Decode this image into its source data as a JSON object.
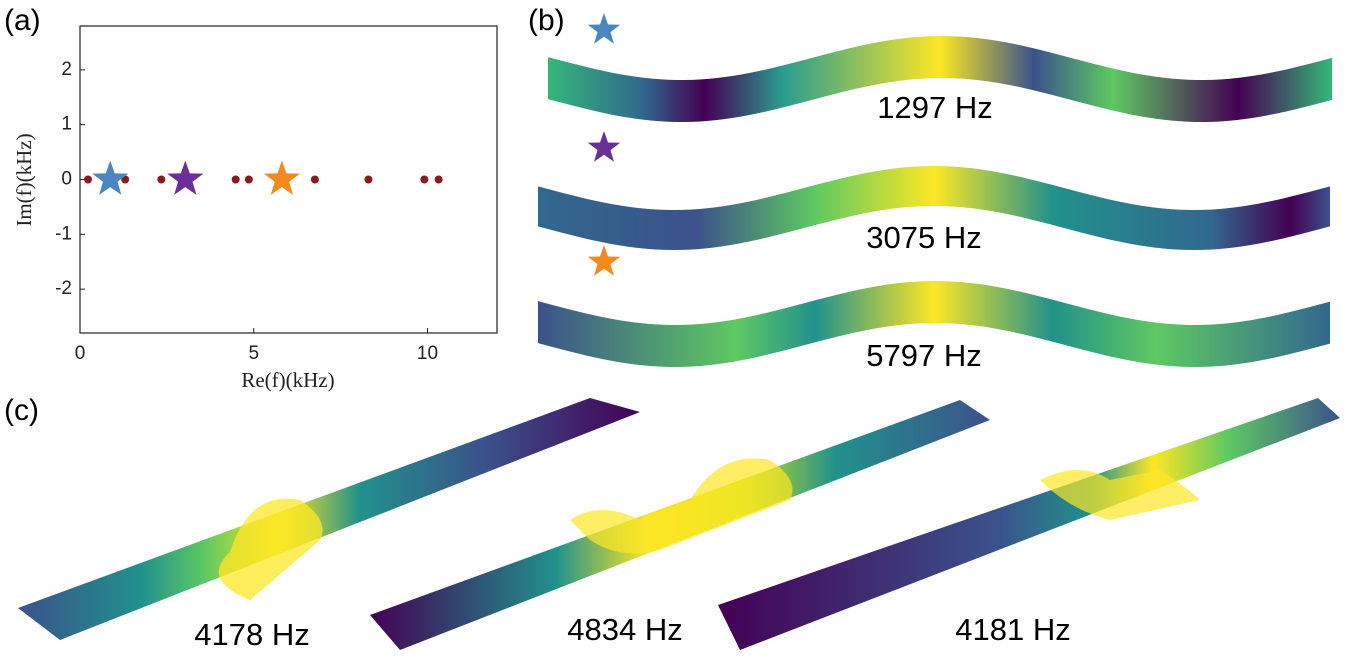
{
  "chart_data": {
    "type": "scatter",
    "xlabel": "Re(f)(kHz)",
    "ylabel": "Im(f)(kHz)",
    "xlim": [
      0,
      12
    ],
    "ylim": [
      -2.8,
      2.8
    ],
    "xticks": [
      0,
      5,
      10
    ],
    "yticks": [
      -2,
      -1,
      0,
      1,
      2
    ],
    "series": [
      {
        "color": "#8b1a1a",
        "marker": "dot",
        "x": [
          0.23,
          1.3,
          2.34,
          4.48,
          4.86,
          6.76,
          8.3,
          9.91,
          10.32
        ],
        "values": [
          0,
          0,
          0,
          0,
          0,
          0,
          0,
          0,
          0
        ]
      },
      {
        "color": "#4a86c0",
        "marker": "star",
        "x": [
          0.87
        ],
        "values": [
          0
        ]
      },
      {
        "color": "#6b2f9a",
        "marker": "star",
        "x": [
          3.03
        ],
        "values": [
          0
        ]
      },
      {
        "color": "#f28a1e",
        "marker": "star",
        "x": [
          5.81
        ],
        "values": [
          0
        ]
      }
    ]
  },
  "panels": {
    "a": "(a)",
    "b": "(b)",
    "c": "(c)"
  },
  "modes_b": [
    "1297 Hz",
    "3075 Hz",
    "5797 Hz"
  ],
  "modes_c": [
    "4178 Hz",
    "4834 Hz",
    "4181 Hz"
  ]
}
